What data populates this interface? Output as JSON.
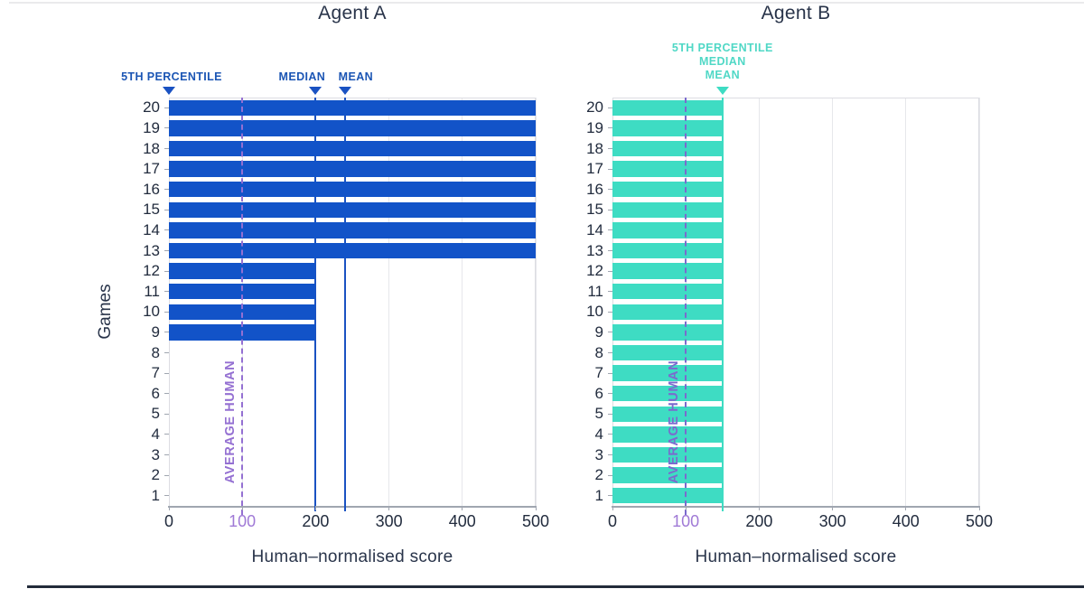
{
  "page": {
    "background": "#ffffff",
    "top_border_color": "#eaeaec",
    "bottom_border_color": "#222b3a"
  },
  "axis": {
    "xlabel": "Human–normalised score",
    "ylabel": "Games",
    "x_ticks": [
      0,
      100,
      200,
      300,
      400,
      500
    ],
    "x_max": 500,
    "highlight_tick": 100,
    "highlight_tick_color": "#a07ad6",
    "tick_color": "#222c3e",
    "grid_color": "#e6e7eb",
    "games": [
      20,
      19,
      18,
      17,
      16,
      15,
      14,
      13,
      12,
      11,
      10,
      9,
      8,
      7,
      6,
      5,
      4,
      3,
      2,
      1
    ]
  },
  "charts": [
    {
      "title": "Agent A",
      "bar_color": "#1253c8",
      "line_color": "#1a52c2",
      "label_color": "#1b55b4",
      "marker_layout": "inline",
      "markers": [
        {
          "label": "5TH PERCENTILE",
          "value": 0,
          "line": false
        },
        {
          "label": "MEDIAN",
          "value": 200,
          "line": true
        },
        {
          "label": "MEAN",
          "value": 240,
          "line": true
        }
      ],
      "reference_line": {
        "label": "AVERAGE HUMAN",
        "value": 100,
        "color": "#9470d2"
      }
    },
    {
      "title": "Agent B",
      "bar_color": "#3edcc3",
      "line_color": "#3edcc3",
      "label_color": "#50d8c6",
      "marker_layout": "stacked",
      "markers": [
        {
          "label": "5TH PERCENTILE",
          "value": 150,
          "line": true
        },
        {
          "label": "MEDIAN",
          "value": 150,
          "line": true
        },
        {
          "label": "MEAN",
          "value": 150,
          "line": true
        }
      ],
      "reference_line": {
        "label": "AVERAGE HUMAN",
        "value": 100,
        "color": "#7b6ace"
      }
    }
  ],
  "chart_data": {
    "type": "bar",
    "orientation": "horizontal",
    "xlabel": "Human–normalised score",
    "ylabel": "Games",
    "xlim": [
      0,
      500
    ],
    "x_ticks": [
      0,
      100,
      200,
      300,
      400,
      500
    ],
    "grid": true,
    "legend": false,
    "categories": [
      1,
      2,
      3,
      4,
      5,
      6,
      7,
      8,
      9,
      10,
      11,
      12,
      13,
      14,
      15,
      16,
      17,
      18,
      19,
      20
    ],
    "series": [
      {
        "name": "Agent A",
        "values": [
          0,
          0,
          0,
          0,
          0,
          0,
          0,
          0,
          200,
          200,
          200,
          200,
          500,
          500,
          500,
          500,
          500,
          500,
          500,
          500
        ],
        "stats": {
          "5th_percentile": 0,
          "median": 200,
          "mean": 240
        }
      },
      {
        "name": "Agent B",
        "values": [
          150,
          150,
          150,
          150,
          150,
          150,
          150,
          150,
          150,
          150,
          150,
          150,
          150,
          150,
          150,
          150,
          150,
          150,
          150,
          150
        ],
        "stats": {
          "5th_percentile": 150,
          "median": 150,
          "mean": 150
        }
      }
    ],
    "reference": {
      "label": "AVERAGE HUMAN",
      "value": 100
    }
  }
}
